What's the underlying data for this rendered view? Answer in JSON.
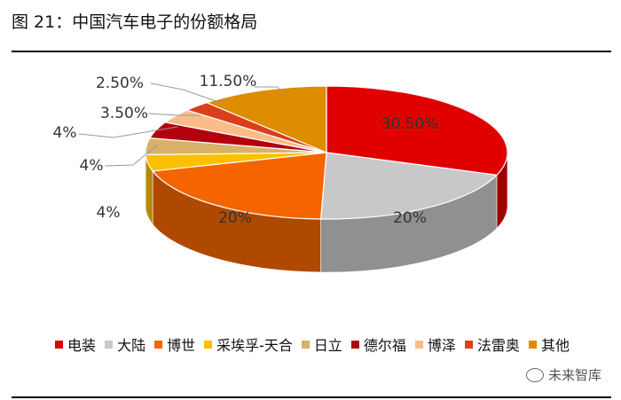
{
  "title": "图  21：中国汽车电子的份额格局",
  "watermark": "未来智库",
  "chart_data": {
    "type": "pie",
    "title": "",
    "legend_position": "bottom",
    "slices": [
      {
        "name": "电装",
        "value": 30.5,
        "label": "30.50%",
        "color": "#e00000"
      },
      {
        "name": "大陆",
        "value": 20,
        "label": "20%",
        "color": "#c8c8c8"
      },
      {
        "name": "博世",
        "value": 20,
        "label": "20%",
        "color": "#f46500"
      },
      {
        "name": "采埃孚-天合",
        "value": 4,
        "label": "4%",
        "color": "#fbc000"
      },
      {
        "name": "日立",
        "value": 4,
        "label": "4%",
        "color": "#d8b268"
      },
      {
        "name": "德尔福",
        "value": 4,
        "label": "4%",
        "color": "#b4000e"
      },
      {
        "name": "博泽",
        "value": 3.5,
        "label": "3.50%",
        "color": "#fbbd88"
      },
      {
        "name": "法雷奥",
        "value": 2.5,
        "label": "2.50%",
        "color": "#d8401c"
      },
      {
        "name": "其他",
        "value": 11.5,
        "label": "11.50%",
        "color": "#dd8d00"
      }
    ]
  }
}
